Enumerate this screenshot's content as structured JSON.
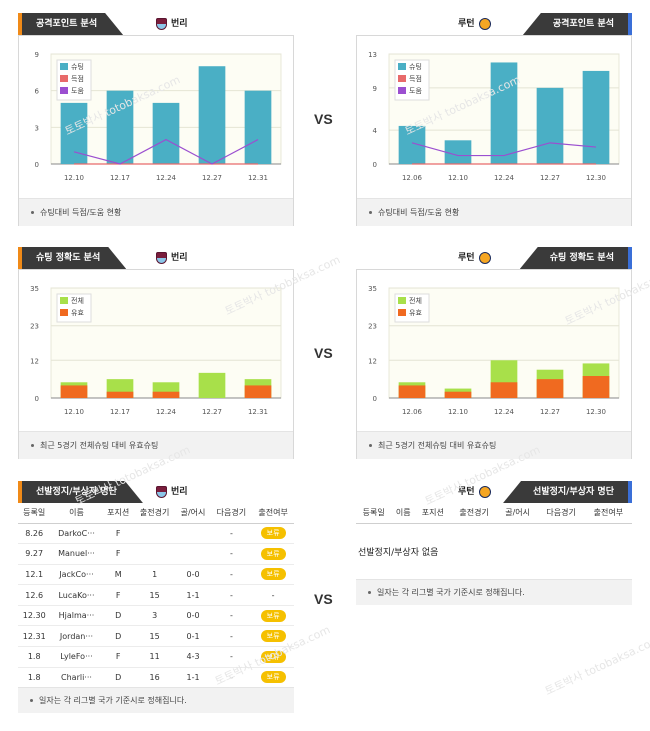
{
  "vs_label": "VS",
  "watermark": "토토박사 totobaksa.com",
  "attack": {
    "title": "공격포인트 분석",
    "note": "슈팅대비 득점/도움 현황",
    "legend": [
      "슈팅",
      "득점",
      "도움"
    ],
    "left_team": "번리",
    "right_team": "루턴"
  },
  "accuracy": {
    "title": "슈팅 정확도 분석",
    "note": "최근 5경기 전체슈팅 대비 유효슈팅",
    "legend": [
      "전체",
      "유효"
    ],
    "left_team": "번리",
    "right_team": "루턴"
  },
  "injury": {
    "title": "선발정지/부상자 명단",
    "left_team": "번리",
    "right_team": "루턴",
    "columns": [
      "등록일",
      "이름",
      "포지션",
      "출전경기",
      "골/어시",
      "다음경기",
      "출전여부"
    ],
    "left_rows": [
      {
        "date": "8.26",
        "name": "DarkoC···",
        "pos": "F",
        "apps": "",
        "ga": "",
        "next": "-",
        "status": "보류"
      },
      {
        "date": "9.27",
        "name": "Manuel···",
        "pos": "F",
        "apps": "",
        "ga": "",
        "next": "-",
        "status": "보류"
      },
      {
        "date": "12.1",
        "name": "JackCo···",
        "pos": "M",
        "apps": "1",
        "ga": "0-0",
        "next": "-",
        "status": "보류"
      },
      {
        "date": "12.6",
        "name": "LucaKo···",
        "pos": "F",
        "apps": "15",
        "ga": "1-1",
        "next": "-",
        "status": "-"
      },
      {
        "date": "12.30",
        "name": "Hjalma···",
        "pos": "D",
        "apps": "3",
        "ga": "0-0",
        "next": "-",
        "status": "보류"
      },
      {
        "date": "12.31",
        "name": "Jordan···",
        "pos": "D",
        "apps": "15",
        "ga": "0-1",
        "next": "-",
        "status": "보류"
      },
      {
        "date": "1.8",
        "name": "LyleFo···",
        "pos": "F",
        "apps": "11",
        "ga": "4-3",
        "next": "-",
        "status": "보류"
      },
      {
        "date": "1.8",
        "name": "Charli···",
        "pos": "D",
        "apps": "16",
        "ga": "1-1",
        "next": "-",
        "status": "보류"
      }
    ],
    "right_empty": "선발정지/부상자 없음",
    "note": "일자는 각 리그별 국가 기준시로 정해집니다."
  },
  "colors": {
    "shots": "#4aafc5",
    "goals": "#e86a6a",
    "assists": "#9b4fd0",
    "total": "#a8e04a",
    "onTarget": "#f06a20"
  },
  "chart_data": [
    {
      "type": "bar",
      "categories": [
        "12.10",
        "12.17",
        "12.24",
        "12.27",
        "12.31"
      ],
      "ylim": [
        0,
        9
      ],
      "yticks": [
        0,
        3,
        6,
        9
      ],
      "series": [
        {
          "name": "슈팅",
          "kind": "bar",
          "values": [
            5,
            6,
            5,
            8,
            6
          ]
        },
        {
          "name": "득점",
          "kind": "line",
          "values": [
            0,
            0,
            0,
            0,
            0
          ]
        },
        {
          "name": "도움",
          "kind": "line",
          "values": [
            1,
            0,
            2,
            0,
            2
          ]
        }
      ]
    },
    {
      "type": "bar",
      "categories": [
        "12.06",
        "12.10",
        "12.24",
        "12.27",
        "12.30"
      ],
      "ylim": [
        0,
        13
      ],
      "yticks": [
        0,
        4,
        9,
        13
      ],
      "series": [
        {
          "name": "슈팅",
          "kind": "bar",
          "values": [
            4.5,
            2.8,
            12,
            9,
            11
          ]
        },
        {
          "name": "득점",
          "kind": "line",
          "values": [
            0,
            0,
            0,
            0,
            0
          ]
        },
        {
          "name": "도움",
          "kind": "line",
          "values": [
            2.5,
            1,
            1,
            2.5,
            2
          ]
        }
      ]
    },
    {
      "type": "bar",
      "categories": [
        "12.10",
        "12.17",
        "12.24",
        "12.27",
        "12.31"
      ],
      "ylim": [
        0,
        35
      ],
      "yticks": [
        0,
        12,
        23,
        35
      ],
      "stacked": true,
      "series": [
        {
          "name": "전체",
          "values": [
            5,
            6,
            5,
            8,
            6
          ]
        },
        {
          "name": "유효",
          "values": [
            4,
            2,
            2,
            0,
            4
          ]
        }
      ]
    },
    {
      "type": "bar",
      "categories": [
        "12.06",
        "12.10",
        "12.24",
        "12.27",
        "12.30"
      ],
      "ylim": [
        0,
        35
      ],
      "yticks": [
        0,
        12,
        23,
        35
      ],
      "stacked": true,
      "series": [
        {
          "name": "전체",
          "values": [
            5,
            3,
            12,
            9,
            11
          ]
        },
        {
          "name": "유효",
          "values": [
            4,
            2,
            5,
            6,
            7
          ]
        }
      ]
    }
  ]
}
